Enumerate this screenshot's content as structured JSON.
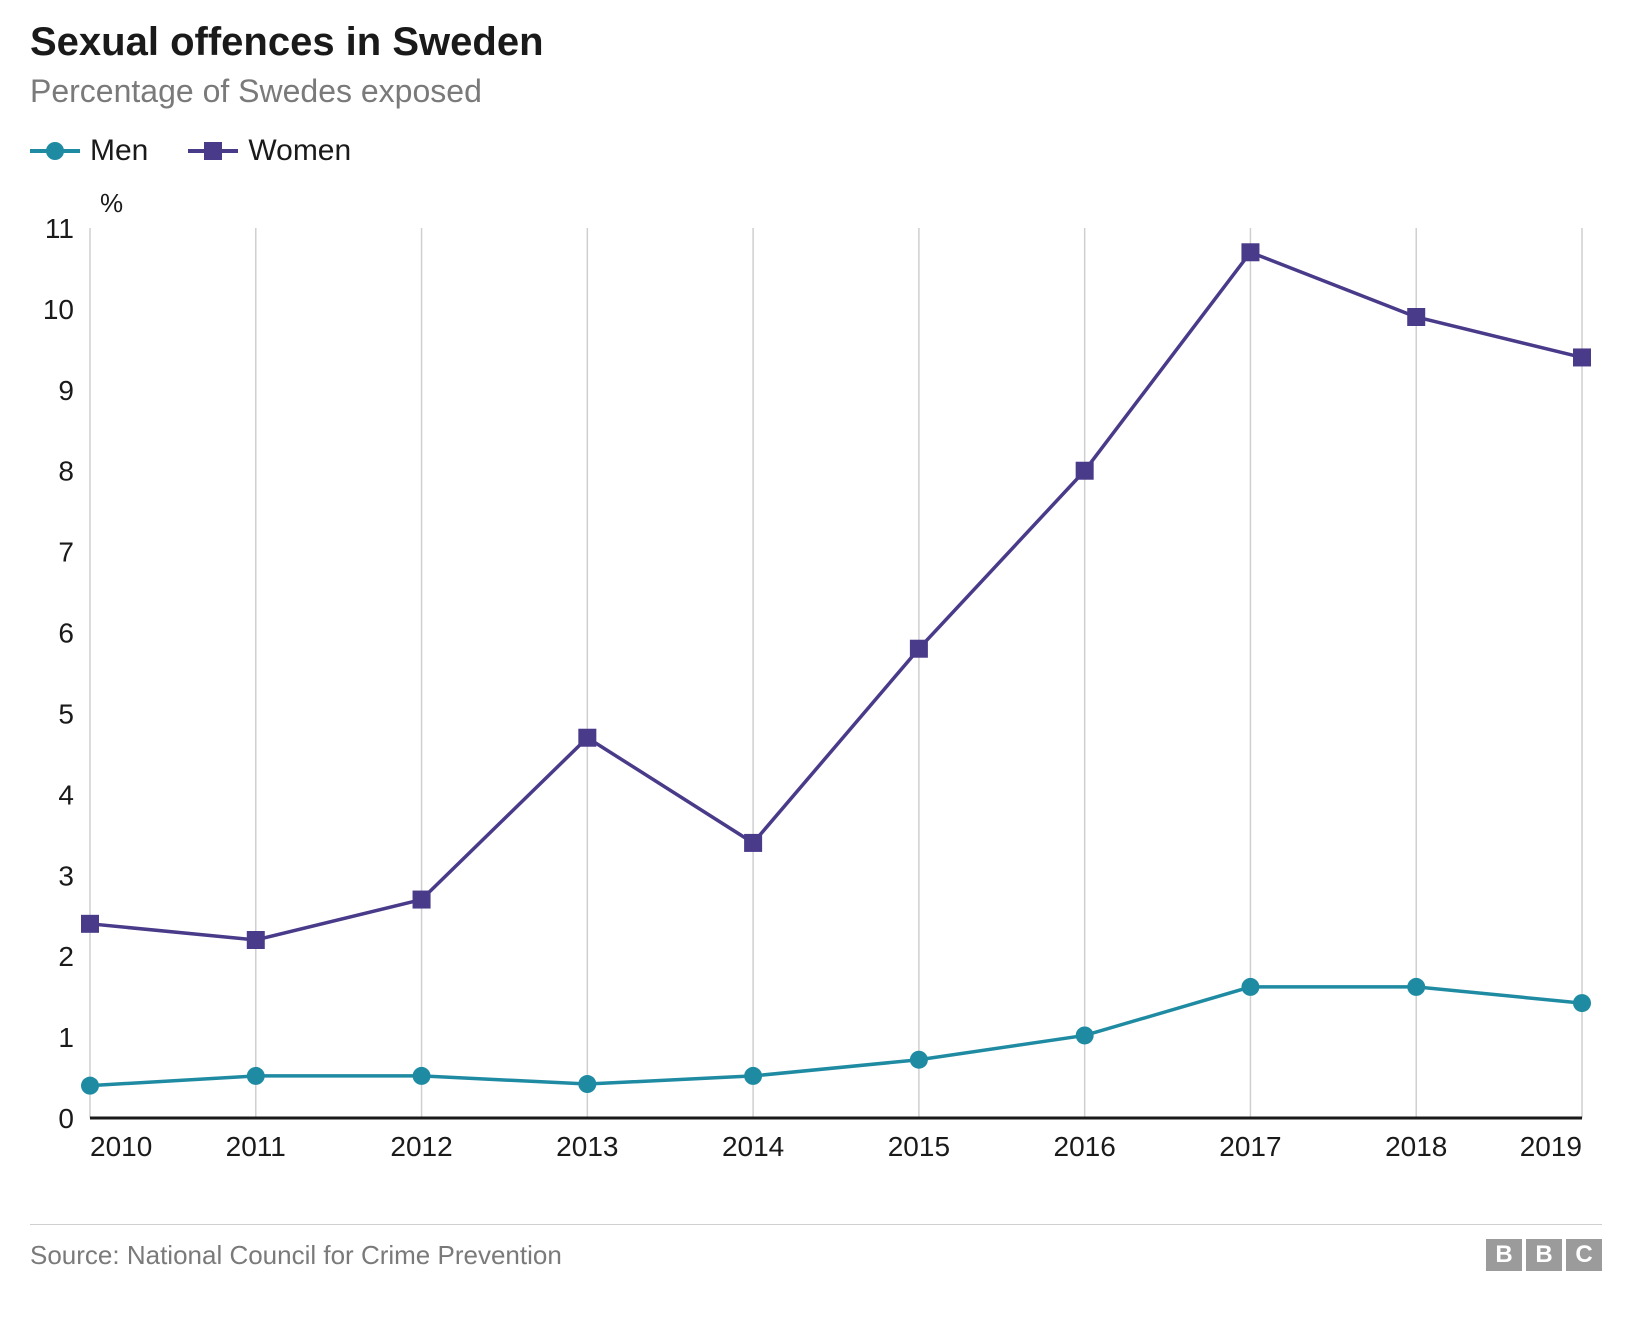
{
  "title": "Sexual offences in Sweden",
  "subtitle": "Percentage of Swedes exposed",
  "y_unit": "%",
  "source": "Source: National Council for Crime Prevention",
  "logo": [
    "B",
    "B",
    "C"
  ],
  "chart": {
    "type": "line",
    "categories": [
      "2010",
      "2011",
      "2012",
      "2013",
      "2014",
      "2015",
      "2016",
      "2017",
      "2018",
      "2019"
    ],
    "yticks": [
      0,
      1,
      2,
      3,
      4,
      5,
      6,
      7,
      8,
      9,
      10,
      11
    ],
    "ylim": [
      0,
      11
    ],
    "background_color": "#ffffff",
    "grid_color": "#cfcfcf",
    "axis_color": "#1a1a1a",
    "tick_fontsize": 28,
    "tick_color": "#1a1a1a",
    "line_width": 3.5,
    "marker_size": 18,
    "series": [
      {
        "name": "Men",
        "color": "#1f8ba3",
        "marker": "circle",
        "values": [
          0.4,
          0.52,
          0.52,
          0.42,
          0.52,
          0.72,
          1.02,
          1.62,
          1.62,
          1.42
        ]
      },
      {
        "name": "Women",
        "color": "#4a3a8a",
        "marker": "square",
        "values": [
          2.4,
          2.2,
          2.7,
          4.7,
          3.4,
          5.8,
          8.0,
          10.7,
          9.9,
          9.4
        ]
      }
    ]
  }
}
